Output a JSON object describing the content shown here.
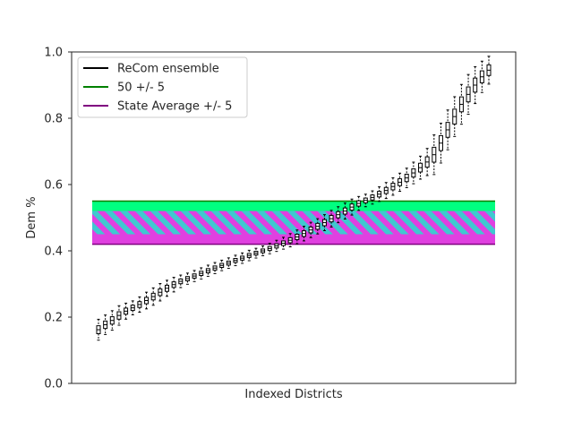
{
  "chart_data": {
    "type": "box",
    "title": "",
    "xlabel": "Indexed Districts",
    "ylabel": "Dem %",
    "ylim": [
      0.0,
      1.0
    ],
    "yticks": [
      "0.0",
      "0.2",
      "0.4",
      "0.6",
      "0.8",
      "1.0"
    ],
    "grid": false,
    "legend_position": "top-left",
    "colors": {
      "ensemble": "#000000",
      "fifty_band": "#00ff80",
      "fifty_line": "#008000",
      "state_band": "#e040e0",
      "state_line": "#800080",
      "hatch": "#40c8d0"
    },
    "legend": [
      {
        "label": "ReCom ensemble",
        "color": "#000000"
      },
      {
        "label": "50 +/- 5",
        "color": "#008000"
      },
      {
        "label": "State Average +/- 5",
        "color": "#800080"
      }
    ],
    "bands": {
      "fifty": {
        "low": 0.45,
        "high": 0.55
      },
      "state_average": {
        "low": 0.42,
        "high": 0.52
      }
    },
    "medians": [
      0.162,
      0.177,
      0.19,
      0.205,
      0.218,
      0.228,
      0.238,
      0.25,
      0.262,
      0.275,
      0.287,
      0.298,
      0.308,
      0.316,
      0.324,
      0.332,
      0.34,
      0.348,
      0.356,
      0.363,
      0.371,
      0.378,
      0.386,
      0.393,
      0.4,
      0.407,
      0.415,
      0.423,
      0.432,
      0.442,
      0.452,
      0.463,
      0.474,
      0.485,
      0.497,
      0.509,
      0.52,
      0.532,
      0.543,
      0.552,
      0.561,
      0.571,
      0.582,
      0.594,
      0.607,
      0.62,
      0.635,
      0.651,
      0.668,
      0.69,
      0.725,
      0.765,
      0.805,
      0.842,
      0.872,
      0.9,
      0.925,
      0.945
    ]
  }
}
